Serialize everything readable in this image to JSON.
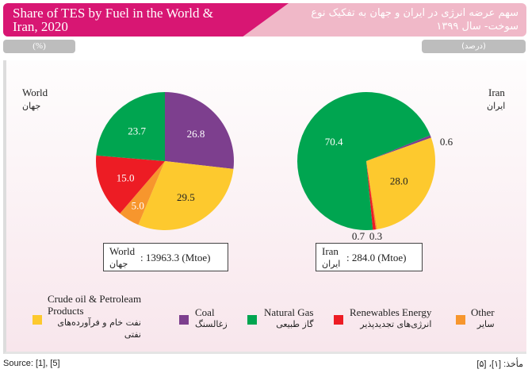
{
  "header": {
    "title_en": "Share of TES by Fuel in the World & Iran, 2020",
    "title_fa": "سهم عرضه انرژی در ایران و جهان به تفکیک نوع سوخت- سال ۱۳۹۹",
    "unit_en": "(%)",
    "unit_fa": "(درصد)"
  },
  "colors": {
    "oil": "#fdc92e",
    "coal": "#7d3f8e",
    "gas": "#00a550",
    "renewables": "#ed1c24",
    "other": "#f7962d"
  },
  "chart_data": [
    {
      "type": "pie",
      "title": "World",
      "title_fa": "جهان",
      "total_label": ": 13963.3 (Mtoe)",
      "slices": [
        {
          "key": "coal",
          "value": 26.8,
          "label": "26.8"
        },
        {
          "key": "oil",
          "value": 29.5,
          "label": "29.5"
        },
        {
          "key": "other",
          "value": 5.0,
          "label": "5.0"
        },
        {
          "key": "renewables",
          "value": 15.0,
          "label": "15.0"
        },
        {
          "key": "gas",
          "value": 23.7,
          "label": "23.7"
        }
      ]
    },
    {
      "type": "pie",
      "title": "Iran",
      "title_fa": "ایران",
      "total_label": ": 284.0 (Mtoe)",
      "slices": [
        {
          "key": "coal",
          "value": 0.6,
          "label": "0.6"
        },
        {
          "key": "oil",
          "value": 28.0,
          "label": "28.0"
        },
        {
          "key": "other",
          "value": 0.3,
          "label": "0.3"
        },
        {
          "key": "renewables",
          "value": 0.7,
          "label": "0.7"
        },
        {
          "key": "gas",
          "value": 70.4,
          "label": "70.4"
        }
      ]
    }
  ],
  "legend": [
    {
      "key": "oil",
      "en": "Crude oil & Petroleam Products",
      "fa": "نفت خام و فرآورده‌های نفتی"
    },
    {
      "key": "coal",
      "en": "Coal",
      "fa": "زغالسنگ"
    },
    {
      "key": "gas",
      "en": "Natural Gas",
      "fa": "گاز طبیعی"
    },
    {
      "key": "renewables",
      "en": "Renewables Energy",
      "fa": "انرژی‌های تجدیدپذیر"
    },
    {
      "key": "other",
      "en": "Other",
      "fa": "سایر"
    }
  ],
  "source_en": "Source: [1], [5]",
  "source_fa": "مأخذ: [۱]، [۵]"
}
